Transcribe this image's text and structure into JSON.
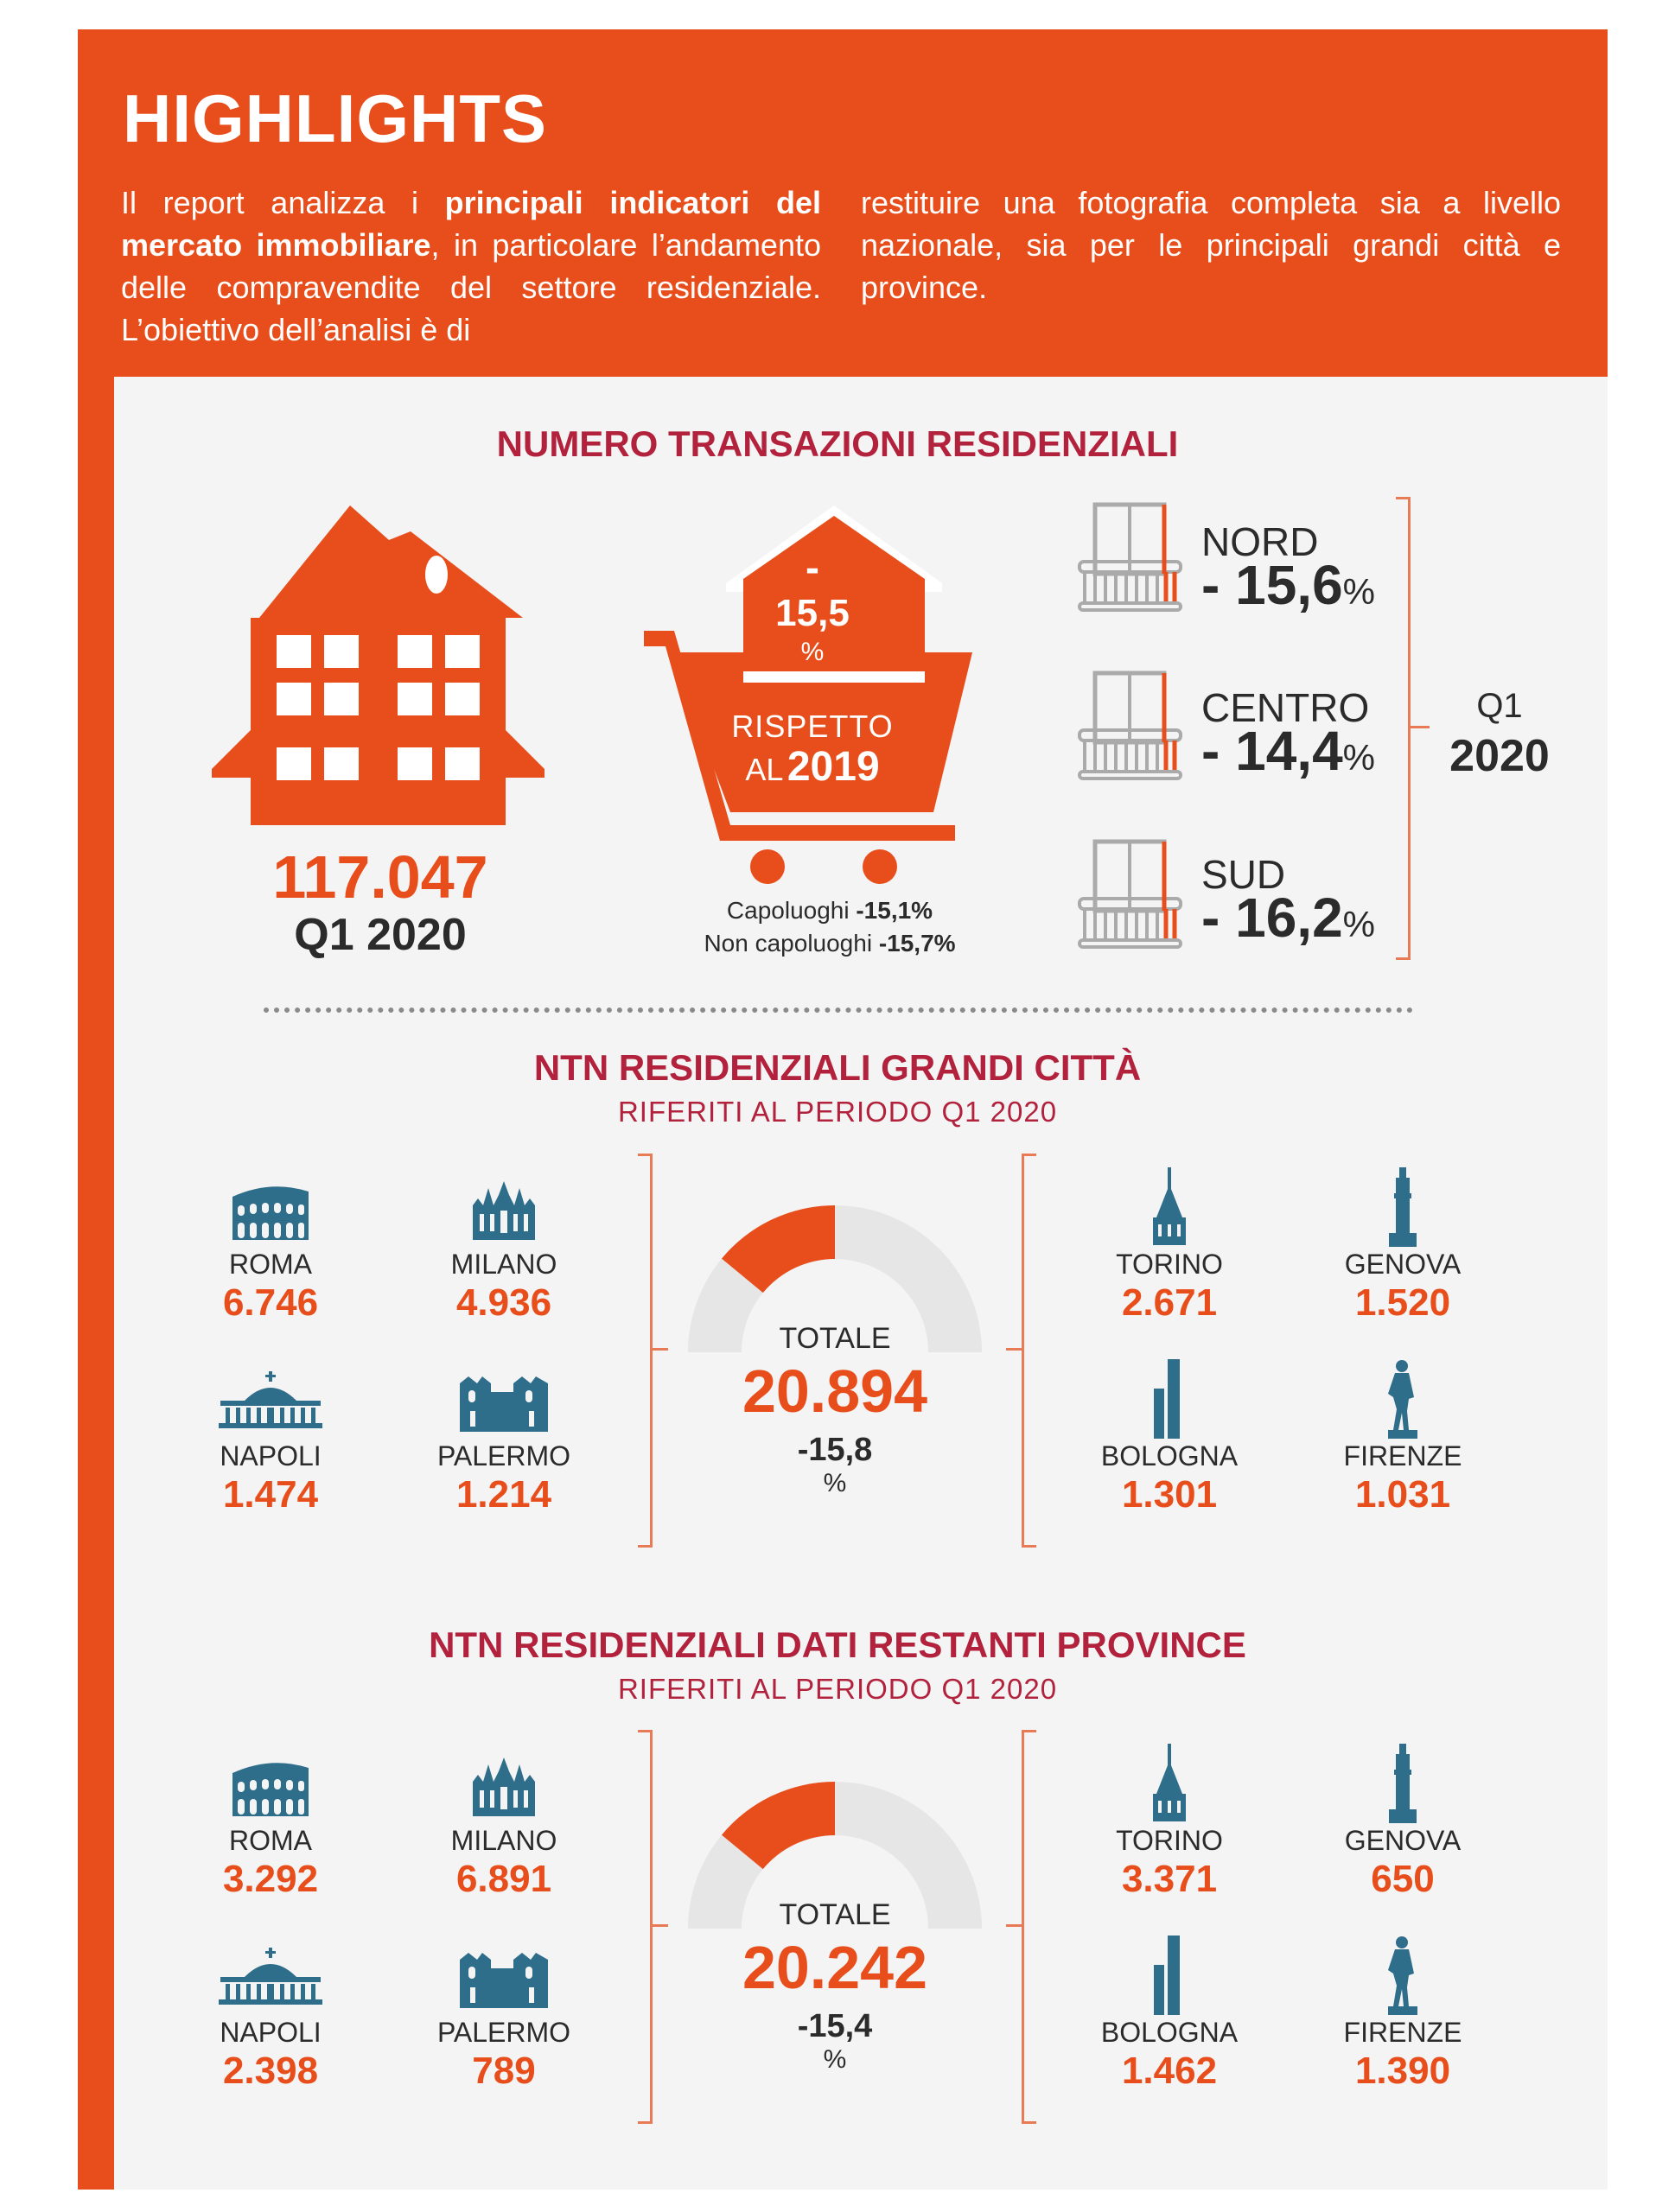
{
  "header": {
    "title": "HIGHLIGHTS",
    "intro_left_1": "Il report analizza i ",
    "intro_left_bold": "principali indicatori del mercato immobiliare",
    "intro_left_2": ", in particolare l’andamento delle compravendite del settore residenziale. L’obiettivo dell’analisi è di",
    "intro_right": "restituire una fotografia completa sia a livello nazionale, sia per le principali grandi città e province."
  },
  "section1": {
    "title": "NUMERO TRANSAZIONI RESIDENZIALI",
    "total_value": "117.047",
    "total_period": "Q1 2020",
    "change_sign": "-",
    "change_value": "15,5",
    "change_unit": "%",
    "compare_label": "RISPETTO",
    "compare_al": "AL",
    "compare_year": "2019",
    "capoluoghi_label": "Capoluoghi",
    "capoluoghi_value": "-15,1%",
    "non_capoluoghi_label": "Non capoluoghi",
    "non_capoluoghi_value": "-15,7%",
    "regions": [
      {
        "name": "NORD",
        "value": "- 15,6",
        "unit": "%"
      },
      {
        "name": "CENTRO",
        "value": "- 14,4",
        "unit": "%"
      },
      {
        "name": "SUD",
        "value": "- 16,2",
        "unit": "%"
      }
    ],
    "period_q": "Q1",
    "period_year": "2020"
  },
  "section2": {
    "title": "NTN RESIDENZIALI GRANDI CITTÀ",
    "subtitle": "RIFERITI AL PERIODO Q1 2020",
    "total_label": "TOTALE",
    "total_value": "20.894",
    "total_change": "-15,8",
    "total_unit": "%",
    "gauge_fraction": 0.33,
    "cities": [
      {
        "name": "ROMA",
        "value": "6.746"
      },
      {
        "name": "MILANO",
        "value": "4.936"
      },
      {
        "name": "NAPOLI",
        "value": "1.474"
      },
      {
        "name": "PALERMO",
        "value": "1.214"
      },
      {
        "name": "TORINO",
        "value": "2.671"
      },
      {
        "name": "GENOVA",
        "value": "1.520"
      },
      {
        "name": "BOLOGNA",
        "value": "1.301"
      },
      {
        "name": "FIRENZE",
        "value": "1.031"
      }
    ]
  },
  "section3": {
    "title": "NTN RESIDENZIALI DATI RESTANTI PROVINCE",
    "subtitle": "RIFERITI AL PERIODO Q1 2020",
    "total_label": "TOTALE",
    "total_value": "20.242",
    "total_change": "-15,4",
    "total_unit": "%",
    "gauge_fraction": 0.33,
    "cities": [
      {
        "name": "ROMA",
        "value": "3.292"
      },
      {
        "name": "MILANO",
        "value": "6.891"
      },
      {
        "name": "NAPOLI",
        "value": "2.398"
      },
      {
        "name": "PALERMO",
        "value": "789"
      },
      {
        "name": "TORINO",
        "value": "3.371"
      },
      {
        "name": "GENOVA",
        "value": "650"
      },
      {
        "name": "BOLOGNA",
        "value": "1.462"
      },
      {
        "name": "FIRENZE",
        "value": "1.390"
      }
    ]
  },
  "colors": {
    "orange": "#e84e1b",
    "title_red": "#b3223d",
    "icon_blue": "#2f6e8a",
    "panel": "#f4f4f4"
  },
  "icons": [
    "house-icon",
    "cart-icon",
    "balcony-icon",
    "colosseum-icon",
    "duomo-icon",
    "basilica-icon",
    "cathedral-icon",
    "mole-icon",
    "lanterna-icon",
    "towers-icon",
    "david-icon"
  ]
}
